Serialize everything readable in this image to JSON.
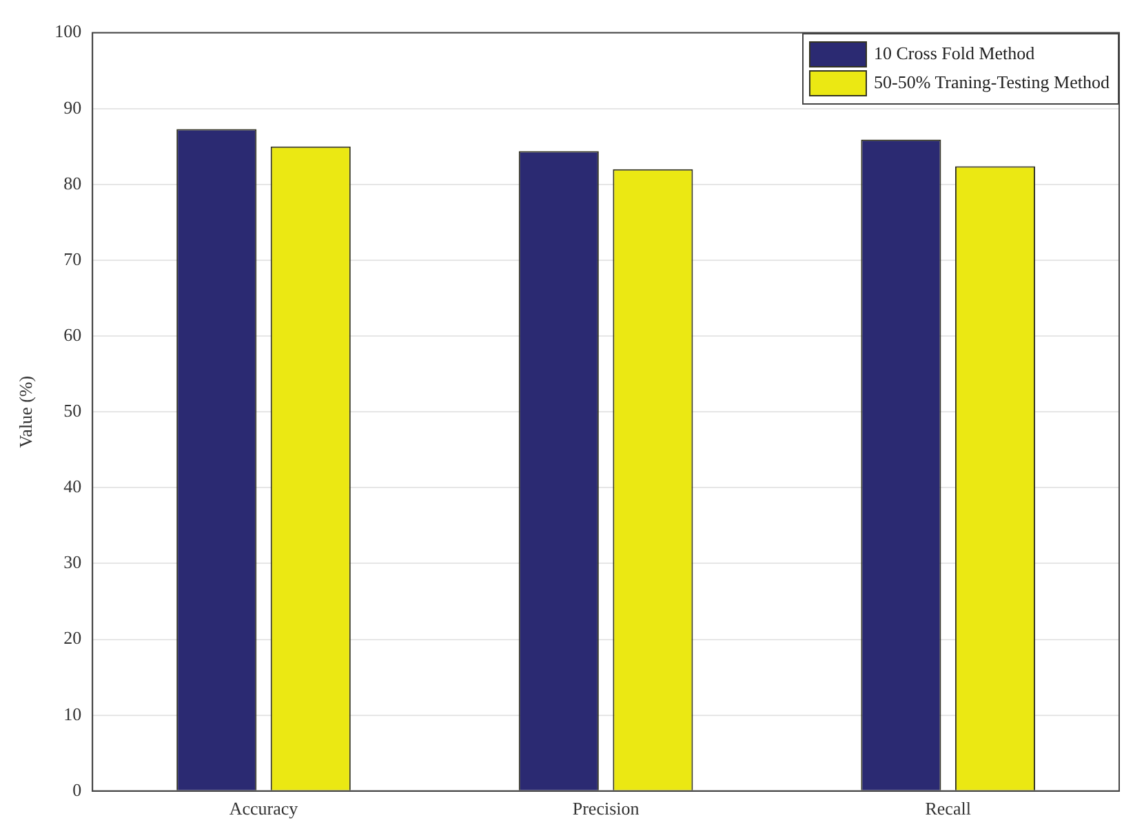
{
  "chart_data": {
    "type": "bar",
    "ylabel": "Value (%)",
    "categories": [
      "Accuracy",
      "Precision",
      "Recall"
    ],
    "series": [
      {
        "name": "10 Cross Fold Method",
        "color": "#2b2a72",
        "values": [
          87.3,
          84.4,
          85.9
        ]
      },
      {
        "name": "50-50% Traning-Testing Method",
        "color": "#ebe813",
        "values": [
          85.0,
          82.0,
          82.4
        ]
      }
    ],
    "ylim": [
      0,
      100
    ],
    "yticks": [
      0,
      10,
      20,
      30,
      40,
      50,
      60,
      70,
      80,
      90,
      100
    ],
    "grid": "y",
    "legend": "top right"
  }
}
